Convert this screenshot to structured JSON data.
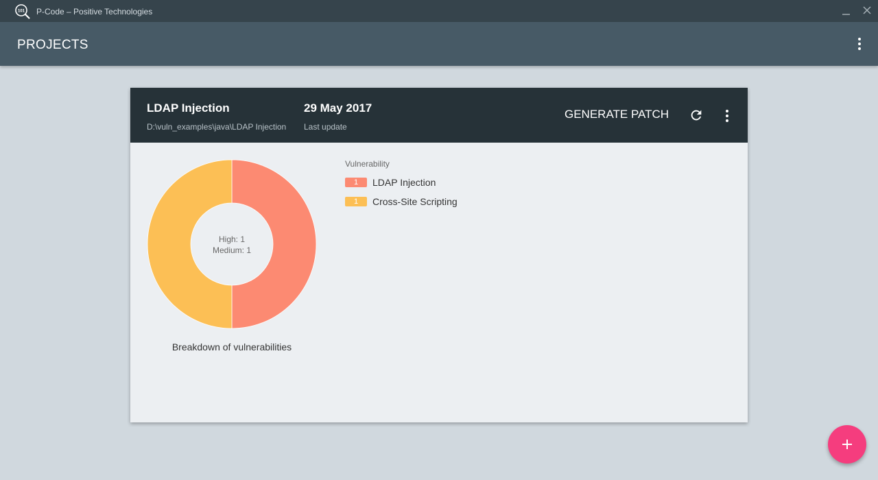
{
  "window": {
    "title": "P-Code – Positive Technologies",
    "logo_text": "101"
  },
  "appbar": {
    "title": "PROJECTS"
  },
  "project": {
    "name": "LDAP Injection",
    "path": "D:\\vuln_examples\\java\\LDAP Injection",
    "date": "29 May 2017",
    "date_label": "Last update",
    "generate_patch_label": "GENERATE PATCH"
  },
  "chart_data": {
    "type": "pie",
    "style": "donut",
    "slices": [
      {
        "label": "LDAP Injection",
        "value": 1,
        "color": "#fc8a72"
      },
      {
        "label": "Cross-Site Scripting",
        "value": 1,
        "color": "#fcbf55"
      }
    ],
    "center_lines": [
      "High: 1",
      "Medium: 1"
    ],
    "caption": "Breakdown of vulnerabilities",
    "legend_title": "Vulnerability",
    "legend_placement": "right"
  },
  "icons": {
    "minimize": "minimize-icon",
    "close": "close-icon",
    "menu": "more-vert-icon",
    "refresh": "refresh-icon",
    "add": "plus-icon"
  },
  "colors": {
    "titlebar": "#36444c",
    "appbar": "#475a66",
    "card_header": "#263238",
    "fab": "#f53d7e"
  }
}
